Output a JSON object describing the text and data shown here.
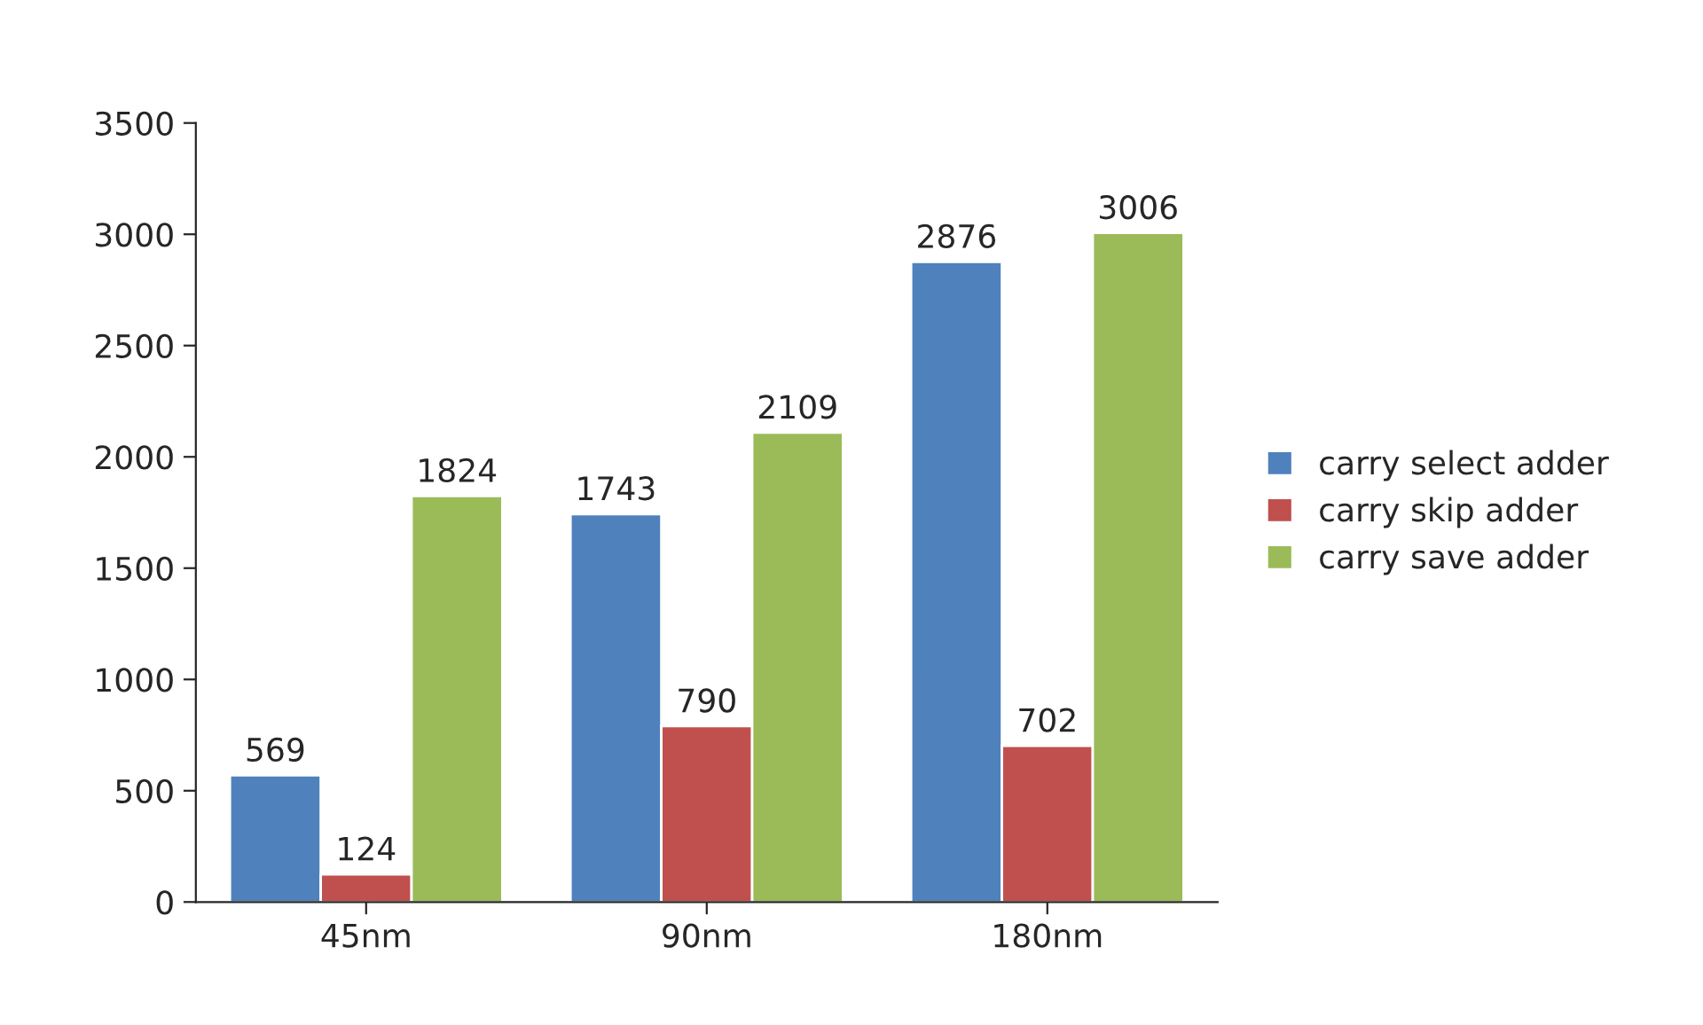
{
  "chart_data": {
    "type": "bar",
    "categories": [
      "45nm",
      "90nm",
      "180nm"
    ],
    "series": [
      {
        "name": "carry select adder",
        "color": "#4f81bd",
        "values": [
          569,
          1743,
          2876
        ]
      },
      {
        "name": "carry skip adder",
        "color": "#c0504d",
        "values": [
          124,
          790,
          702
        ]
      },
      {
        "name": "carry save adder",
        "color": "#9bbb59",
        "values": [
          1824,
          2109,
          3006
        ]
      }
    ],
    "ylim": [
      0,
      3500
    ],
    "yticks": [
      0,
      500,
      1000,
      1500,
      2000,
      2500,
      3000,
      3500
    ],
    "data_labels": true,
    "legend": "right",
    "grid": false
  }
}
